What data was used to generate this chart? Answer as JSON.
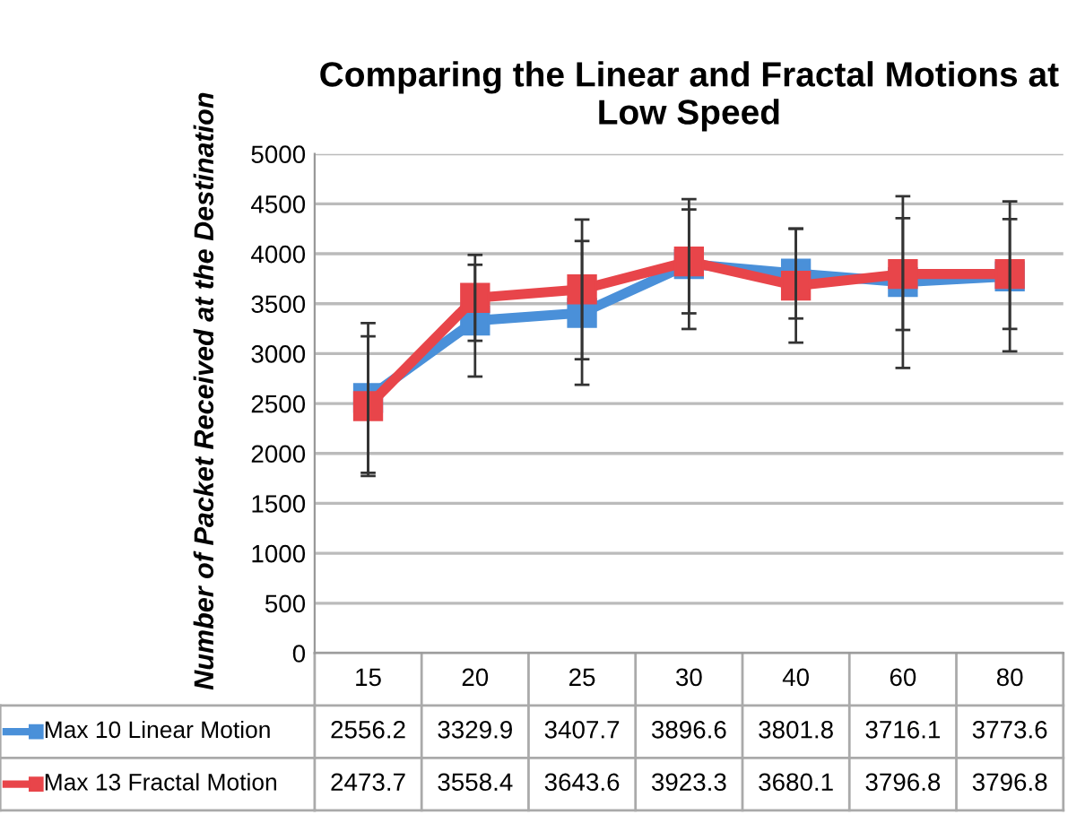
{
  "chart_data": {
    "type": "line",
    "title": "Comparing the Linear and Fractal Motions at Low Speed",
    "ylabel": "Number of Packet Received at the Destination",
    "categories": [
      "15",
      "20",
      "25",
      "30",
      "40",
      "60",
      "80"
    ],
    "series": [
      {
        "name": "Max 10 Linear Motion",
        "color": "#4a90d9",
        "values": [
          2556.2,
          3329.9,
          3407.7,
          3896.6,
          3801.8,
          3716.1,
          3773.6
        ],
        "errors": [
          750,
          560,
          720,
          650,
          450,
          860,
          750
        ]
      },
      {
        "name": "Max 13 Fractal Motion",
        "color": "#e8454a",
        "values": [
          2473.7,
          3558.4,
          3643.6,
          3923.3,
          3680.1,
          3796.8,
          3796.8
        ],
        "errors": [
          700,
          430,
          700,
          520,
          570,
          560,
          550
        ]
      }
    ],
    "ylim": [
      0,
      5000
    ],
    "yticks": [
      0,
      500,
      1000,
      1500,
      2000,
      2500,
      3000,
      3500,
      4000,
      4500,
      5000
    ],
    "grid": "y",
    "marker": "square",
    "line_style": "solid",
    "data_labels": true,
    "legend": "bottom left"
  }
}
